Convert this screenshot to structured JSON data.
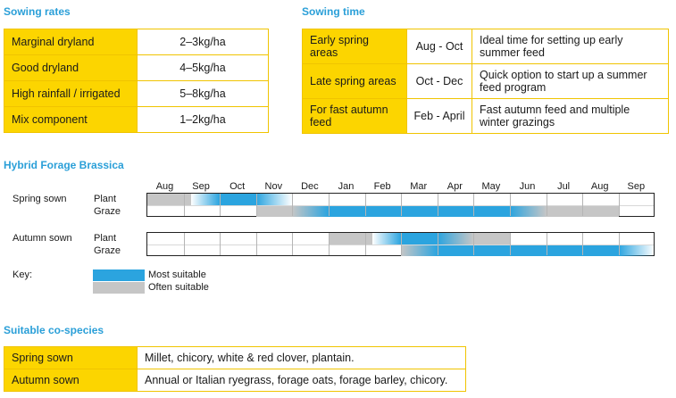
{
  "colors": {
    "most": "#2ba4df",
    "often": "#c6c6c6",
    "label_bg": "#fcd500",
    "border": "#f0c400",
    "heading": "#2a9fd8"
  },
  "sowing_rates": {
    "title": "Sowing rates",
    "rows": [
      {
        "label": "Marginal dryland",
        "value": "2–3kg/ha"
      },
      {
        "label": "Good dryland",
        "value": "4–5kg/ha"
      },
      {
        "label": "High rainfall / irrigated",
        "value": "5–8kg/ha"
      },
      {
        "label": "Mix component",
        "value": "1–2kg/ha"
      }
    ]
  },
  "sowing_time": {
    "title": "Sowing time",
    "rows": [
      {
        "label": "Early spring areas",
        "months": "Aug - Oct",
        "note": "Ideal time for setting up early summer feed"
      },
      {
        "label": "Late spring areas",
        "months": "Oct - Dec",
        "note": "Quick option to start up a summer feed program"
      },
      {
        "label": "For fast autumn feed",
        "months": "Feb - April",
        "note": "Fast autumn feed and multiple winter grazings"
      }
    ]
  },
  "forage": {
    "title": "Hybrid Forage Brassica",
    "months": [
      "Aug",
      "Sep",
      "Oct",
      "Nov",
      "Dec",
      "Jan",
      "Feb",
      "Mar",
      "Apr",
      "May",
      "Jun",
      "Jul",
      "Aug",
      "Sep"
    ],
    "plant_label": "Plant",
    "graze_label": "Graze",
    "groups": [
      {
        "name": "Spring sown",
        "plant": [
          {
            "start": 0,
            "end": 1.2,
            "type": "often"
          },
          {
            "start": 1.2,
            "end": 2,
            "type": "most",
            "fade_in": true
          },
          {
            "start": 2,
            "end": 3,
            "type": "most"
          },
          {
            "start": 3,
            "end": 4,
            "type": "most",
            "fade_out": true
          }
        ],
        "graze": [
          {
            "start": 3,
            "end": 4,
            "type": "often"
          },
          {
            "start": 4,
            "end": 5,
            "type": "often_to_most"
          },
          {
            "start": 5,
            "end": 10,
            "type": "most"
          },
          {
            "start": 10,
            "end": 11,
            "type": "most_to_often"
          },
          {
            "start": 11,
            "end": 13,
            "type": "often"
          }
        ]
      },
      {
        "name": "Autumn sown",
        "plant": [
          {
            "start": 5,
            "end": 6.2,
            "type": "often"
          },
          {
            "start": 6.2,
            "end": 7,
            "type": "most",
            "fade_in": true
          },
          {
            "start": 7,
            "end": 8,
            "type": "most"
          },
          {
            "start": 8,
            "end": 9,
            "type": "most_to_often"
          },
          {
            "start": 9,
            "end": 10,
            "type": "often"
          }
        ],
        "graze": [
          {
            "start": 7,
            "end": 8,
            "type": "often_to_most"
          },
          {
            "start": 8,
            "end": 13,
            "type": "most"
          },
          {
            "start": 13,
            "end": 14,
            "type": "most",
            "fade_out": true
          }
        ]
      }
    ],
    "key_title": "Key:",
    "key_most": "Most suitable",
    "key_often": "Often suitable"
  },
  "co_species": {
    "title": "Suitable co-species",
    "rows": [
      {
        "label": "Spring sown",
        "value": "Millet, chicory, white & red clover, plantain."
      },
      {
        "label": "Autumn sown",
        "value": "Annual or Italian ryegrass, forage oats, forage barley, chicory."
      }
    ]
  }
}
